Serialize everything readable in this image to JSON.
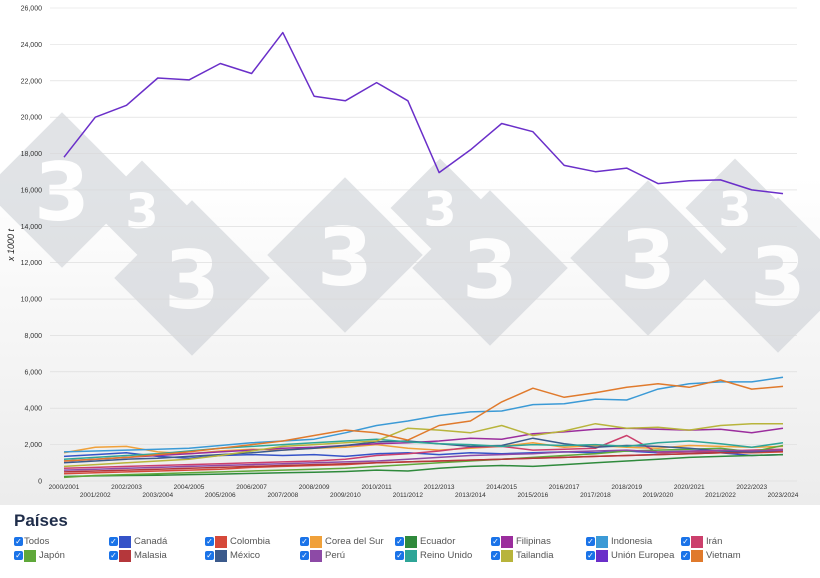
{
  "chart_data": {
    "type": "line",
    "ylabel": "x 1000 t",
    "ylim": [
      0,
      26000
    ],
    "yticks": [
      "0",
      "2,000",
      "4,000",
      "6,000",
      "8,000",
      "10,000",
      "12,000",
      "14,000",
      "16,000",
      "18,000",
      "20,000",
      "22,000",
      "24,000",
      "26,000"
    ],
    "categories": [
      "2000/2001",
      "2001/2002",
      "2002/2003",
      "2003/2004",
      "2004/2005",
      "2005/2006",
      "2006/2007",
      "2007/2008",
      "2008/2009",
      "2009/2010",
      "2010/2011",
      "2011/2012",
      "2012/2013",
      "2013/2014",
      "2014/2015",
      "2015/2016",
      "2016/2017",
      "2017/2018",
      "2018/2019",
      "2019/2020",
      "2020/2021",
      "2021/2022",
      "2022/2023",
      "2023/2024"
    ],
    "grid": true,
    "legend_position": "bottom",
    "series": [
      {
        "name": "Canadá",
        "color": "#3553c8",
        "values": [
          1350,
          1450,
          1550,
          1350,
          1250,
          1400,
          1450,
          1400,
          1450,
          1350,
          1500,
          1550,
          1450,
          1550,
          1500,
          1550,
          1600,
          1550,
          1650,
          1550,
          1600,
          1550,
          1400,
          1450
        ]
      },
      {
        "name": "Colombia",
        "color": "#d6493a",
        "values": [
          400,
          450,
          500,
          550,
          600,
          650,
          750,
          800,
          850,
          900,
          1000,
          1050,
          1100,
          1150,
          1200,
          1250,
          1300,
          1350,
          1400,
          1450,
          1500,
          1550,
          1550,
          1600
        ]
      },
      {
        "name": "Corea del Sur",
        "color": "#f0a13a",
        "values": [
          1550,
          1850,
          1900,
          1600,
          1500,
          1650,
          1750,
          1700,
          1800,
          1850,
          2000,
          1800,
          1700,
          1800,
          1900,
          2100,
          1850,
          1950,
          1850,
          1800,
          1950,
          1900,
          1850,
          1900
        ]
      },
      {
        "name": "Ecuador",
        "color": "#2f8a3c",
        "values": [
          250,
          280,
          300,
          320,
          350,
          380,
          420,
          450,
          480,
          520,
          600,
          550,
          700,
          800,
          850,
          800,
          900,
          1000,
          1100,
          1200,
          1300,
          1350,
          1400,
          1450
        ]
      },
      {
        "name": "Filipinas",
        "color": "#9b2d9d",
        "values": [
          1100,
          1200,
          1300,
          1400,
          1500,
          1600,
          1700,
          1800,
          1850,
          1950,
          2050,
          2100,
          2200,
          2350,
          2300,
          2600,
          2700,
          2850,
          2900,
          2850,
          2800,
          2850,
          2650,
          2900
        ]
      },
      {
        "name": "Indonesia",
        "color": "#3b9ad6",
        "values": [
          1600,
          1650,
          1700,
          1750,
          1800,
          1950,
          2100,
          2200,
          2300,
          2650,
          3050,
          3300,
          3600,
          3800,
          3850,
          4200,
          4250,
          4500,
          4450,
          5050,
          5350,
          5450,
          5450,
          5700
        ]
      },
      {
        "name": "Irán",
        "color": "#cc3f6c",
        "values": [
          700,
          750,
          800,
          850,
          900,
          950,
          1000,
          1050,
          1100,
          1200,
          1400,
          1500,
          1650,
          1850,
          1900,
          1700,
          1750,
          1800,
          2500,
          1550,
          1600,
          1650,
          1700,
          1750
        ]
      },
      {
        "name": "Japón",
        "color": "#5fa83a",
        "values": [
          200,
          300,
          350,
          400,
          450,
          500,
          550,
          600,
          650,
          700,
          800,
          900,
          1000,
          1100,
          1200,
          1300,
          1400,
          1500,
          1650,
          1700,
          1750,
          1800,
          1600,
          1950
        ]
      },
      {
        "name": "Malasia",
        "color": "#b5373b",
        "values": [
          500,
          550,
          600,
          650,
          700,
          750,
          800,
          850,
          900,
          950,
          1000,
          1050,
          1100,
          1150,
          1200,
          1250,
          1300,
          1350,
          1400,
          1450,
          1500,
          1550,
          1600,
          1650
        ]
      },
      {
        "name": "México",
        "color": "#3b5a8c",
        "values": [
          1000,
          1100,
          1200,
          1250,
          1350,
          1450,
          1550,
          1700,
          1800,
          1950,
          2150,
          2200,
          2050,
          1900,
          1950,
          2350,
          2050,
          1850,
          1950,
          1900,
          1800,
          1650,
          1600,
          1700
        ]
      },
      {
        "name": "Perú",
        "color": "#8d4aa6",
        "values": [
          600,
          650,
          700,
          750,
          800,
          850,
          900,
          950,
          1000,
          1050,
          1100,
          1200,
          1300,
          1400,
          1450,
          1500,
          1600,
          1650,
          1700,
          1600,
          1650,
          1700,
          1650,
          1700
        ]
      },
      {
        "name": "Reino Unido",
        "color": "#2ea597",
        "values": [
          1200,
          1300,
          1400,
          1500,
          1650,
          1800,
          1900,
          2000,
          2100,
          2200,
          2300,
          2150,
          2050,
          2000,
          1900,
          2000,
          1950,
          2000,
          1900,
          2100,
          2200,
          2050,
          1850,
          2100
        ]
      },
      {
        "name": "Tailandia",
        "color": "#b8b43b",
        "values": [
          800,
          900,
          1000,
          1100,
          1200,
          1400,
          1650,
          1900,
          2000,
          2100,
          2200,
          2900,
          2800,
          2650,
          3050,
          2500,
          2750,
          3150,
          2900,
          2950,
          2800,
          3050,
          3150,
          3150
        ]
      },
      {
        "name": "Unión Europea",
        "color": "#6a2fc9",
        "values": [
          17800,
          20000,
          20650,
          22150,
          22050,
          22950,
          22400,
          24650,
          21150,
          20900,
          21900,
          20900,
          16950,
          18200,
          19650,
          19200,
          17350,
          17000,
          17200,
          16350,
          16500,
          16550,
          16000,
          15800
        ]
      },
      {
        "name": "Vietnam",
        "color": "#e07a2c",
        "values": [
          1100,
          1200,
          1300,
          1450,
          1600,
          1800,
          2000,
          2200,
          2500,
          2800,
          2650,
          2250,
          3050,
          3300,
          4350,
          5100,
          4600,
          4850,
          5150,
          5350,
          5150,
          5550,
          5050,
          5200
        ]
      }
    ]
  },
  "legend": {
    "title": "Países",
    "items": [
      {
        "label": "Todos",
        "color": ""
      },
      {
        "label": "Canadá",
        "color": "#3553c8"
      },
      {
        "label": "Colombia",
        "color": "#d6493a"
      },
      {
        "label": "Corea del Sur",
        "color": "#f0a13a"
      },
      {
        "label": "Ecuador",
        "color": "#2f8a3c"
      },
      {
        "label": "Filipinas",
        "color": "#9b2d9d"
      },
      {
        "label": "Indonesia",
        "color": "#3b9ad6"
      },
      {
        "label": "Irán",
        "color": "#cc3f6c"
      },
      {
        "label": "Japón",
        "color": "#5fa83a"
      },
      {
        "label": "Malasia",
        "color": "#b5373b"
      },
      {
        "label": "México",
        "color": "#3b5a8c"
      },
      {
        "label": "Perú",
        "color": "#8d4aa6"
      },
      {
        "label": "Reino Unido",
        "color": "#2ea597"
      },
      {
        "label": "Tailandia",
        "color": "#b8b43b"
      },
      {
        "label": "Unión Europea",
        "color": "#6a2fc9"
      },
      {
        "label": "Vietnam",
        "color": "#e07a2c"
      }
    ]
  }
}
